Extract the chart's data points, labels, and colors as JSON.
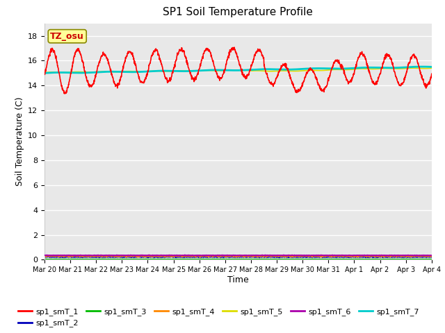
{
  "title": "SP1 Soil Temperature Profile",
  "xlabel": "Time",
  "ylabel": "Soil Temperature (C)",
  "annotation": "TZ_osu",
  "annotation_color": "#cc0000",
  "annotation_bg": "#ffff99",
  "annotation_edge": "#888800",
  "ylim": [
    0,
    19
  ],
  "yticks": [
    0,
    2,
    4,
    6,
    8,
    10,
    12,
    14,
    16,
    18
  ],
  "xlim": [
    0,
    15
  ],
  "xtick_labels": [
    "Mar 20",
    "Mar 21",
    "Mar 22",
    "Mar 23",
    "Mar 24",
    "Mar 25",
    "Mar 26",
    "Mar 27",
    "Mar 28",
    "Mar 29",
    "Mar 30",
    "Mar 31",
    "Apr 1",
    "Apr 2",
    "Apr 3",
    "Apr 4"
  ],
  "series_colors": {
    "smT_1": "#ff0000",
    "smT_2": "#0000bb",
    "smT_3": "#00bb00",
    "smT_4": "#ff8800",
    "smT_5": "#dddd00",
    "smT_6": "#aa00aa",
    "smT_7": "#00cccc"
  },
  "series_linewidths": {
    "smT_1": 1.2,
    "smT_2": 1.2,
    "smT_3": 1.2,
    "smT_4": 1.2,
    "smT_5": 1.2,
    "smT_6": 1.5,
    "smT_7": 2.0
  },
  "bg_color": "#e8e8e8",
  "grid_color": "#ffffff",
  "legend_labels": [
    "sp1_smT_1",
    "sp1_smT_2",
    "sp1_smT_3",
    "sp1_smT_4",
    "sp1_smT_5",
    "sp1_smT_6",
    "sp1_smT_7"
  ],
  "legend_colors": [
    "#ff0000",
    "#0000bb",
    "#00bb00",
    "#ff8800",
    "#dddd00",
    "#aa00aa",
    "#00cccc"
  ],
  "figsize": [
    6.4,
    4.8
  ],
  "dpi": 100
}
